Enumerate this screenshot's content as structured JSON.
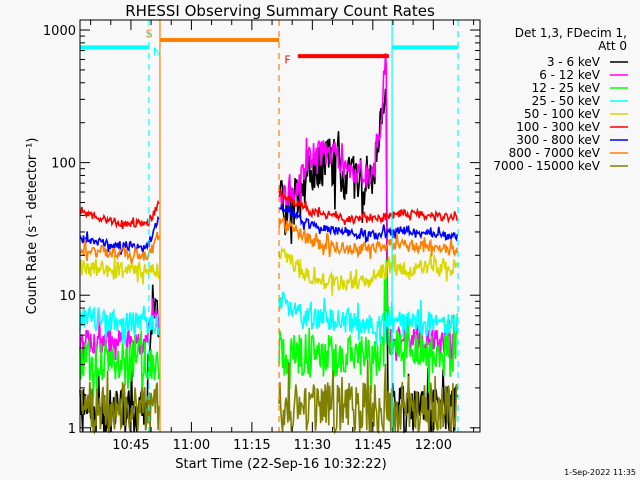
{
  "chart_data": {
    "type": "line",
    "title": "RHESSI Observing Summary Count Rates",
    "xlabel": "Start Time (22-Sep-16 10:32:22)",
    "ylabel": "Count Rate (s⁻¹ detector⁻¹)",
    "xlim": [
      "10:32:22",
      "12:11:35"
    ],
    "ylim": [
      0.93,
      1190
    ],
    "yscale": "log",
    "x_ticks": [
      {
        "t": "10:45",
        "label": "10:45"
      },
      {
        "t": "11:00",
        "label": "11:00"
      },
      {
        "t": "11:15",
        "label": "11:15"
      },
      {
        "t": "11:30",
        "label": "11:30"
      },
      {
        "t": "11:45",
        "label": "11:45"
      },
      {
        "t": "12:00",
        "label": "12:00"
      }
    ],
    "y_ticks": [
      {
        "v": 1,
        "label": "1"
      },
      {
        "v": 10,
        "label": "10"
      },
      {
        "v": 100,
        "label": "100"
      },
      {
        "v": 1000,
        "label": "1000"
      }
    ],
    "legend": {
      "placement": "right",
      "header": [
        "Det 1,3, FDecim 1,",
        "Att 0"
      ]
    },
    "data_segments": [
      [
        "10:32:22",
        "10:52:10"
      ],
      [
        "11:21:44",
        "12:06:08"
      ]
    ],
    "series": [
      {
        "name": "3 - 6 keV",
        "color": "#000000",
        "noise": 0.18,
        "points": [
          [
            "10:32:22",
            1.3
          ],
          [
            "10:48:00",
            1.3
          ],
          [
            "10:49:30",
            3
          ],
          [
            "10:50:30",
            9
          ],
          [
            "10:52:10",
            6
          ],
          [
            "11:21:44",
            50
          ],
          [
            "11:27:00",
            52
          ],
          [
            "11:29:00",
            85
          ],
          [
            "11:33:00",
            100
          ],
          [
            "11:36:00",
            100
          ],
          [
            "11:38:00",
            78
          ],
          [
            "11:41:00",
            72
          ],
          [
            "11:44:00",
            75
          ],
          [
            "11:45:30",
            85
          ],
          [
            "11:46:30",
            150
          ],
          [
            "11:47:30",
            330
          ],
          [
            "11:48:20",
            420
          ],
          [
            "11:48:40",
            1.4
          ],
          [
            "12:06:08",
            1.4
          ]
        ]
      },
      {
        "name": "6 - 12 keV",
        "color": "#ff00ff",
        "noise": 0.1,
        "points": [
          [
            "10:32:22",
            4.5
          ],
          [
            "10:49:00",
            4.5
          ],
          [
            "10:50:30",
            8
          ],
          [
            "10:52:10",
            6
          ],
          [
            "11:21:44",
            55
          ],
          [
            "11:26:00",
            60
          ],
          [
            "11:28:00",
            95
          ],
          [
            "11:30:00",
            115
          ],
          [
            "11:36:00",
            118
          ],
          [
            "11:38:00",
            85
          ],
          [
            "11:41:00",
            78
          ],
          [
            "11:44:00",
            85
          ],
          [
            "11:45:30",
            95
          ],
          [
            "11:46:30",
            170
          ],
          [
            "11:47:30",
            330
          ],
          [
            "11:48:20",
            770
          ],
          [
            "11:48:40",
            4.5
          ],
          [
            "12:06:08",
            4.5
          ]
        ]
      },
      {
        "name": "12 - 25 keV",
        "color": "#00ff00",
        "noise": 0.16,
        "points": [
          [
            "10:32:22",
            3.2
          ],
          [
            "10:52:10",
            3.2
          ],
          [
            "11:21:44",
            3.5
          ],
          [
            "11:47:30",
            3.5
          ],
          [
            "11:48:20",
            15
          ],
          [
            "11:49:00",
            4
          ],
          [
            "12:06:08",
            3.4
          ]
        ]
      },
      {
        "name": "25 - 50 keV",
        "color": "#00ffff",
        "noise": 0.09,
        "points": [
          [
            "10:32:22",
            6.5
          ],
          [
            "10:52:10",
            6
          ],
          [
            "11:21:44",
            9
          ],
          [
            "11:30:00",
            6.5
          ],
          [
            "12:06:08",
            6
          ]
        ]
      },
      {
        "name": "50 - 100 keV",
        "color": "#d8d800",
        "noise": 0.06,
        "points": [
          [
            "10:32:22",
            16
          ],
          [
            "10:50:00",
            15
          ],
          [
            "10:52:10",
            16
          ],
          [
            "11:21:44",
            22
          ],
          [
            "11:30:00",
            13
          ],
          [
            "11:42:00",
            12
          ],
          [
            "11:49:00",
            16
          ],
          [
            "12:06:08",
            16
          ]
        ]
      },
      {
        "name": "100 - 300 keV",
        "color": "#ff0000",
        "noise": 0.03,
        "points": [
          [
            "10:32:22",
            42
          ],
          [
            "10:40:00",
            36
          ],
          [
            "10:49:00",
            34
          ],
          [
            "10:52:10",
            50
          ],
          [
            "11:21:44",
            60
          ],
          [
            "11:30:00",
            42
          ],
          [
            "11:40:00",
            37
          ],
          [
            "11:47:00",
            38
          ],
          [
            "11:52:00",
            42
          ],
          [
            "12:06:08",
            38
          ]
        ]
      },
      {
        "name": "300 - 800 keV",
        "color": "#0000ff",
        "noise": 0.035,
        "points": [
          [
            "10:32:22",
            27
          ],
          [
            "10:40:00",
            24
          ],
          [
            "10:49:00",
            23
          ],
          [
            "10:52:10",
            40
          ],
          [
            "11:21:44",
            48
          ],
          [
            "11:30:00",
            33
          ],
          [
            "11:40:00",
            29
          ],
          [
            "11:45:00",
            28
          ],
          [
            "11:52:00",
            31
          ],
          [
            "12:06:08",
            27
          ]
        ]
      },
      {
        "name": "800 - 7000 keV",
        "color": "#ff8000",
        "noise": 0.045,
        "points": [
          [
            "10:32:22",
            22
          ],
          [
            "10:49:00",
            20
          ],
          [
            "10:52:10",
            30
          ],
          [
            "11:21:44",
            38
          ],
          [
            "11:30:00",
            25
          ],
          [
            "11:40:00",
            22
          ],
          [
            "11:50:00",
            24
          ],
          [
            "12:06:08",
            22
          ]
        ]
      },
      {
        "name": "7000 - 15000 keV",
        "color": "#808000",
        "noise": 0.2,
        "points": [
          [
            "10:32:22",
            1.4
          ],
          [
            "10:52:10",
            1.4
          ],
          [
            "11:21:44",
            1.4
          ],
          [
            "12:06:08",
            1.4
          ]
        ]
      }
    ],
    "markers": [
      {
        "t": "10:49:28",
        "color": "#00ffff",
        "style": "dashed"
      },
      {
        "t": "10:52:12",
        "color": "#ff8000",
        "style": "solid"
      },
      {
        "t": "11:21:44",
        "color": "#ff8000",
        "style": "dashed"
      },
      {
        "t": "11:49:46",
        "color": "#00ffff",
        "style": "solid"
      },
      {
        "t": "12:06:08",
        "color": "#00ffff",
        "style": "dashed"
      }
    ],
    "flag_bars": [
      {
        "start": "10:32:22",
        "end": "10:49:28",
        "level": 740,
        "color": "#00ffff"
      },
      {
        "start": "10:52:12",
        "end": "11:21:44",
        "level": 840,
        "color": "#ff8000"
      },
      {
        "start": "11:26:24",
        "end": "11:49:00",
        "level": 635,
        "color": "#ff0000"
      },
      {
        "start": "11:49:46",
        "end": "12:06:08",
        "level": 740,
        "color": "#00ffff"
      }
    ],
    "annotations": [
      {
        "text": "S",
        "t": "10:49:30",
        "v": 940,
        "color": "#ff8000"
      },
      {
        "text": "N",
        "t": "10:51:30",
        "v": 690,
        "color": "#00ffff"
      },
      {
        "text": "F",
        "t": "11:23:50",
        "v": 600,
        "color": "#ff0000"
      }
    ]
  },
  "footer": {
    "timestamp": "1-Sep-2022 11:35"
  }
}
